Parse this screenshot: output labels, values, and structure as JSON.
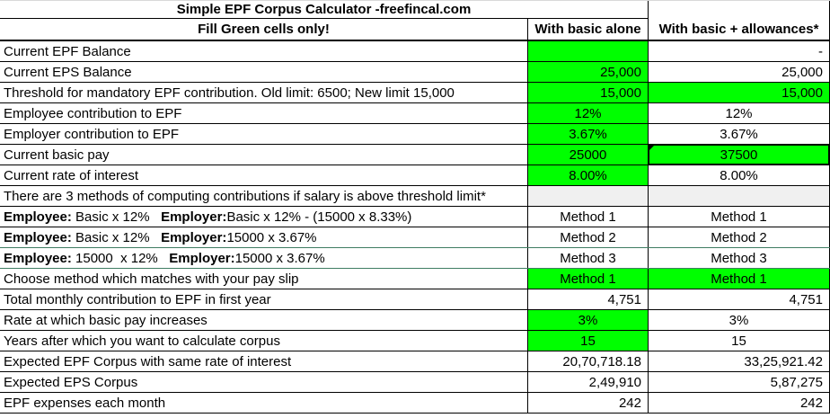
{
  "title": "Simple EPF Corpus Calculator -freefincal.com",
  "columns": {
    "header_left": "Fill Green cells only!",
    "col_basic": "With basic alone",
    "col_allowances": "With basic + allowances*"
  },
  "colors": {
    "input_cell_green": "#00ff00",
    "shaded_row_gray": "#f0f0f0",
    "grid_border_black": "#000000"
  },
  "icons": {
    "note_marker": "comment-corner-triangle"
  },
  "rows": [
    {
      "label": "Current EPF Balance",
      "basic": "",
      "allowances": "-"
    },
    {
      "label": "Current EPS Balance",
      "basic": "25,000",
      "allowances": "25,000"
    },
    {
      "label": "Threshold for mandatory EPF contribution. Old limit: 6500; New limit 15,000",
      "basic": "15,000",
      "allowances": "15,000"
    },
    {
      "label": "Employee contribution to EPF",
      "basic": "12%",
      "allowances": "12%"
    },
    {
      "label": "Employer contribution to EPF",
      "basic": "3.67%",
      "allowances": "3.67%"
    },
    {
      "label": "Current basic pay",
      "basic": "25000",
      "allowances": "37500"
    },
    {
      "label": "Current rate of interest",
      "basic": "8.00%",
      "allowances": "8.00%"
    },
    {
      "label": "There are 3 methods of computing contributions if salary is above threshold limit*",
      "basic": "",
      "allowances": ""
    },
    {
      "label_parts": {
        "b1": "Employee:",
        "t1": " Basic x 12%   ",
        "b2": "Employer:",
        "t2": "Basic x 12% - (15000 x 8.33%)"
      },
      "basic": "Method 1",
      "allowances": "Method 1"
    },
    {
      "label_parts": {
        "b1": "Employee:",
        "t1": " Basic x 12%   ",
        "b2": "Employer:",
        "t2": "15000 x 3.67%"
      },
      "basic": "Method 2",
      "allowances": "Method 2"
    },
    {
      "label_parts": {
        "b1": "Employee:",
        "t1": " 15000  x 12%   ",
        "b2": "Employer:",
        "t2": "15000 x 3.67%"
      },
      "basic": "Method 3",
      "allowances": "Method 3"
    },
    {
      "label": "Choose method which matches with your pay slip",
      "basic": "Method 1",
      "allowances": "Method 1"
    },
    {
      "label": "Total monthly contribution to EPF in first year",
      "basic": "4,751",
      "allowances": "4,751"
    },
    {
      "label": "Rate at which basic pay increases",
      "basic": "3%",
      "allowances": "3%"
    },
    {
      "label": "Years after which you want to calculate corpus",
      "basic": "15",
      "allowances": "15"
    },
    {
      "label": "Expected EPF Corpus with same rate of interest",
      "basic": "20,70,718.18",
      "allowances": "33,25,921.42"
    },
    {
      "label": "Expected EPS Corpus",
      "basic": "2,49,910",
      "allowances": "5,87,275"
    },
    {
      "label": "EPF expenses each month",
      "basic": "242",
      "allowances": "242"
    }
  ]
}
